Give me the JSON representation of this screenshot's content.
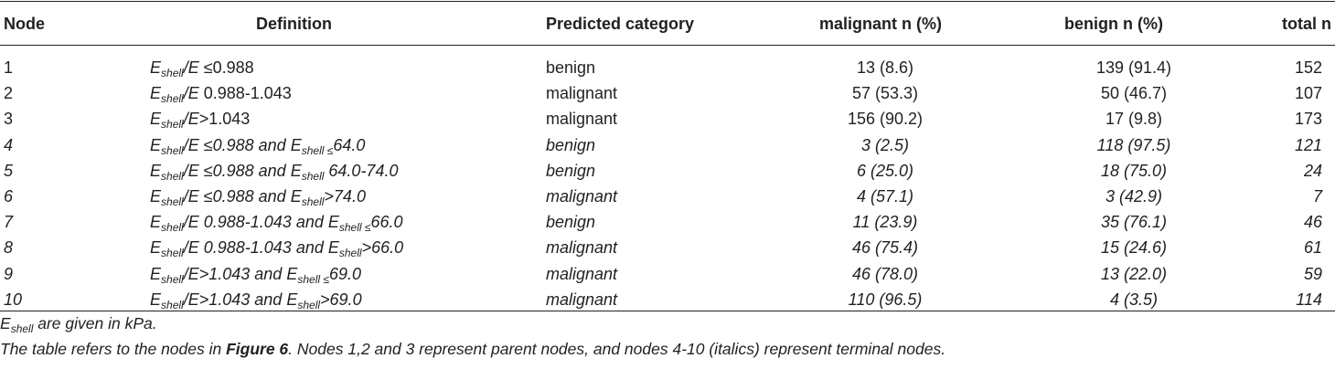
{
  "table": {
    "headers": {
      "node": "Node",
      "definition": "Definition",
      "category": "Predicted category",
      "malignant": "malignant n (%)",
      "benign": "benign n (%)",
      "total": "total n"
    },
    "symbols": {
      "E": "E",
      "shell": "shell",
      "and": "and"
    },
    "rows": [
      {
        "node": "1",
        "cond1": "≤0.988",
        "cond2": "",
        "op2": "",
        "category": "benign",
        "malignant": "13 (8.6)",
        "benign": "139 (91.4)",
        "total": "152",
        "italic": false
      },
      {
        "node": "2",
        "cond1": "0.988-1.043",
        "cond2": "",
        "op2": "",
        "category": "malignant",
        "malignant": "57 (53.3)",
        "benign": "50 (46.7)",
        "total": "107",
        "italic": false
      },
      {
        "node": "3",
        "cond1": ">1.043",
        "cond2": "",
        "op2": "",
        "category": "malignant",
        "malignant": "156 (90.2)",
        "benign": "17 (9.8)",
        "total": "173",
        "italic": false
      },
      {
        "node": "4",
        "cond1": "≤0.988",
        "cond2": "64.0",
        "op2": "≤",
        "category": "benign",
        "malignant": "3 (2.5)",
        "benign": "118 (97.5)",
        "total": "121",
        "italic": true
      },
      {
        "node": "5",
        "cond1": "≤0.988",
        "cond2": "64.0-74.0",
        "op2": "",
        "category": "benign",
        "malignant": "6 (25.0)",
        "benign": "18 (75.0)",
        "total": "24",
        "italic": true
      },
      {
        "node": "6",
        "cond1": "≤0.988",
        "cond2": ">74.0",
        "op2": "",
        "category": "malignant",
        "malignant": "4 (57.1)",
        "benign": "3 (42.9)",
        "total": "7",
        "italic": true
      },
      {
        "node": "7",
        "cond1": "0.988-1.043",
        "cond2": "66.0",
        "op2": "≤",
        "category": "benign",
        "malignant": "11 (23.9)",
        "benign": "35 (76.1)",
        "total": "46",
        "italic": true
      },
      {
        "node": "8",
        "cond1": "0.988-1.043",
        "cond2": ">66.0",
        "op2": "",
        "category": "malignant",
        "malignant": "46 (75.4)",
        "benign": "15 (24.6)",
        "total": "61",
        "italic": true
      },
      {
        "node": "9",
        "cond1": ">1.043",
        "cond2": "69.0",
        "op2": "≤",
        "category": "malignant",
        "malignant": "46 (78.0)",
        "benign": "13 (22.0)",
        "total": "59",
        "italic": true
      },
      {
        "node": "10",
        "cond1": ">1.043",
        "cond2": ">69.0",
        "op2": "",
        "category": "malignant",
        "malignant": "110 (96.5)",
        "benign": "4 (3.5)",
        "total": "114",
        "italic": true
      }
    ]
  },
  "notes": {
    "units_prefix": "E",
    "units_sub": "shell",
    "units_text": " are given in kPa.",
    "ref_before": "The table refers to the nodes in ",
    "ref_bold": "Figure 6",
    "ref_after": ". Nodes 1,2 and 3 represent parent nodes, and nodes 4-10 (italics) represent terminal nodes."
  }
}
